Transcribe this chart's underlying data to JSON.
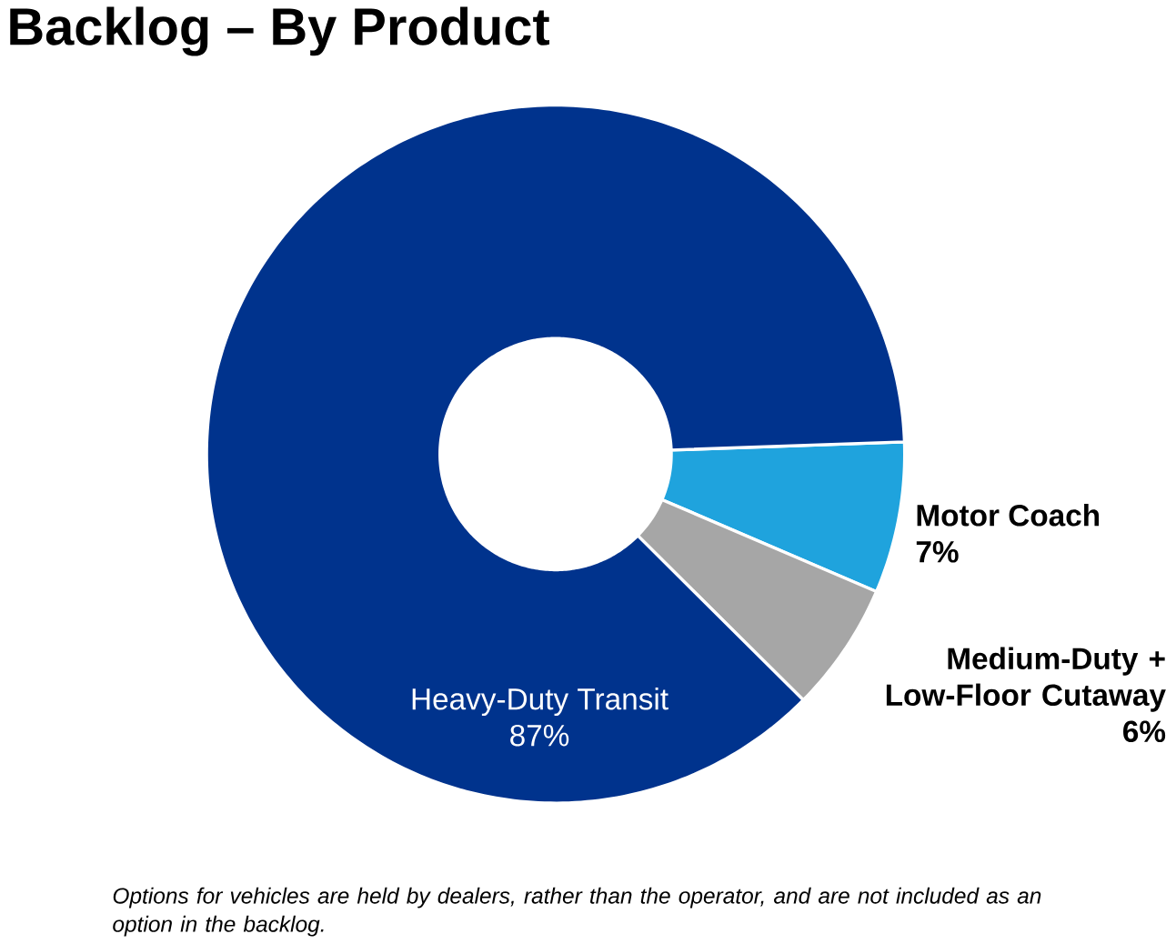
{
  "chart_data": {
    "type": "donut",
    "title": "Backlog – By Product",
    "categories": [
      "Motor Coach",
      "Medium-Duty + Low-Floor Cutaway",
      "Heavy-Duty Transit"
    ],
    "values": [
      7,
      6,
      87
    ],
    "value_labels": [
      "7%",
      "6%",
      "87%"
    ],
    "colors": [
      "#1fa3dd",
      "#a6a6a6",
      "#00338d"
    ],
    "annotations": [
      "Options for vehicles are held by dealers, rather than the operator, and are not included as an option in the backlog."
    ]
  }
}
